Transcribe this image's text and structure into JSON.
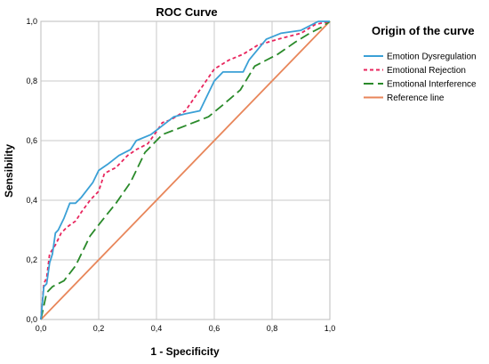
{
  "chart_data": {
    "type": "line",
    "title": "ROC Curve",
    "xlabel": "1 - Specificity",
    "ylabel": "Sensibility",
    "xlim": [
      0,
      1
    ],
    "ylim": [
      0,
      1
    ],
    "x_ticks": [
      "0,0",
      "0,2",
      "0,4",
      "0,6",
      "0,8",
      "1,0"
    ],
    "y_ticks": [
      "0,0",
      "0,2",
      "0,4",
      "0,6",
      "0,8",
      "1,0"
    ],
    "grid": true,
    "legend_title": "Origin of the curve",
    "legend_position": "right",
    "series": [
      {
        "name": "Emotion Dysregulation",
        "color": "#3aa0d6",
        "style": "solid",
        "points": [
          [
            0,
            0
          ],
          [
            0.01,
            0.11
          ],
          [
            0.02,
            0.12
          ],
          [
            0.03,
            0.19
          ],
          [
            0.04,
            0.22
          ],
          [
            0.05,
            0.29
          ],
          [
            0.06,
            0.3
          ],
          [
            0.08,
            0.34
          ],
          [
            0.1,
            0.39
          ],
          [
            0.12,
            0.39
          ],
          [
            0.14,
            0.41
          ],
          [
            0.18,
            0.46
          ],
          [
            0.2,
            0.5
          ],
          [
            0.23,
            0.52
          ],
          [
            0.27,
            0.55
          ],
          [
            0.31,
            0.57
          ],
          [
            0.33,
            0.6
          ],
          [
            0.38,
            0.62
          ],
          [
            0.42,
            0.65
          ],
          [
            0.46,
            0.68
          ],
          [
            0.5,
            0.69
          ],
          [
            0.55,
            0.7
          ],
          [
            0.6,
            0.8
          ],
          [
            0.63,
            0.83
          ],
          [
            0.7,
            0.83
          ],
          [
            0.72,
            0.87
          ],
          [
            0.78,
            0.94
          ],
          [
            0.83,
            0.96
          ],
          [
            0.9,
            0.97
          ],
          [
            0.96,
            1.0
          ],
          [
            1.0,
            1.0
          ]
        ]
      },
      {
        "name": "Emotional Rejection",
        "color": "#e8265e",
        "style": "dashed",
        "points": [
          [
            0,
            0
          ],
          [
            0.01,
            0.12
          ],
          [
            0.02,
            0.14
          ],
          [
            0.03,
            0.22
          ],
          [
            0.05,
            0.25
          ],
          [
            0.07,
            0.29
          ],
          [
            0.09,
            0.31
          ],
          [
            0.12,
            0.33
          ],
          [
            0.14,
            0.36
          ],
          [
            0.17,
            0.4
          ],
          [
            0.2,
            0.43
          ],
          [
            0.22,
            0.49
          ],
          [
            0.26,
            0.51
          ],
          [
            0.3,
            0.55
          ],
          [
            0.33,
            0.57
          ],
          [
            0.37,
            0.59
          ],
          [
            0.4,
            0.63
          ],
          [
            0.42,
            0.66
          ],
          [
            0.45,
            0.67
          ],
          [
            0.5,
            0.7
          ],
          [
            0.55,
            0.77
          ],
          [
            0.6,
            0.84
          ],
          [
            0.65,
            0.87
          ],
          [
            0.7,
            0.89
          ],
          [
            0.75,
            0.92
          ],
          [
            0.82,
            0.94
          ],
          [
            0.9,
            0.96
          ],
          [
            0.95,
            0.99
          ],
          [
            1.0,
            1.0
          ]
        ]
      },
      {
        "name": "Emotional Interference",
        "color": "#2a8a2a",
        "style": "longdash",
        "points": [
          [
            0,
            0
          ],
          [
            0.02,
            0.09
          ],
          [
            0.04,
            0.11
          ],
          [
            0.08,
            0.13
          ],
          [
            0.12,
            0.18
          ],
          [
            0.17,
            0.28
          ],
          [
            0.21,
            0.33
          ],
          [
            0.26,
            0.39
          ],
          [
            0.31,
            0.46
          ],
          [
            0.36,
            0.56
          ],
          [
            0.42,
            0.62
          ],
          [
            0.5,
            0.65
          ],
          [
            0.58,
            0.68
          ],
          [
            0.63,
            0.72
          ],
          [
            0.69,
            0.77
          ],
          [
            0.74,
            0.85
          ],
          [
            0.82,
            0.89
          ],
          [
            0.88,
            0.93
          ],
          [
            0.93,
            0.96
          ],
          [
            0.97,
            0.98
          ],
          [
            1.0,
            1.0
          ]
        ]
      },
      {
        "name": "Reference line",
        "color": "#e8865a",
        "style": "solid",
        "points": [
          [
            0,
            0
          ],
          [
            1,
            1
          ]
        ]
      }
    ]
  }
}
